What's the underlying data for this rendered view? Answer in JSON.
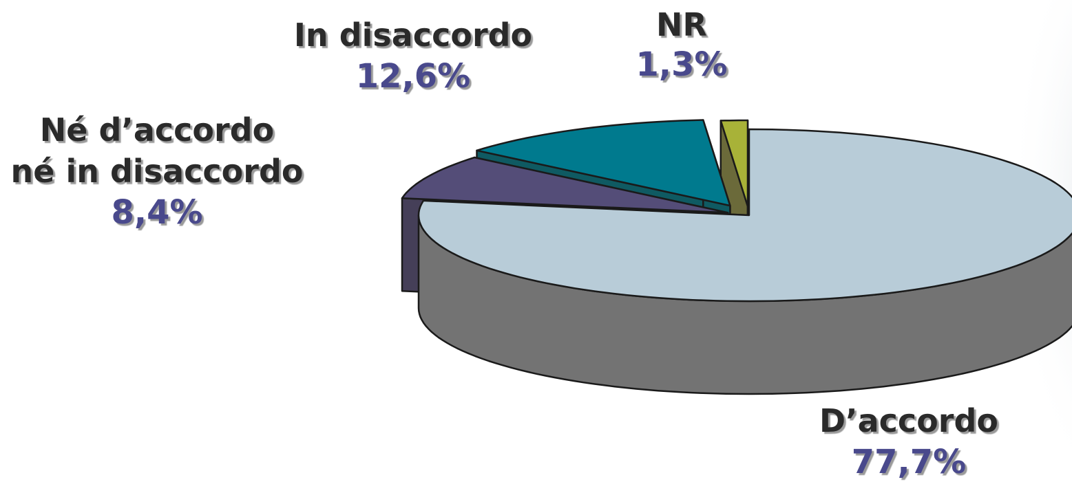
{
  "chart_data": {
    "type": "pie",
    "three_d": true,
    "exploded": true,
    "labels": [
      "D’accordo",
      "Né d’accordo né in disaccordo",
      "In disaccordo",
      "NR"
    ],
    "values": [
      77.7,
      8.4,
      12.6,
      1.3
    ],
    "value_labels": [
      "77,7%",
      "8,4%",
      "12,6%",
      "1,3%"
    ],
    "label_lines": [
      [
        "D’accordo"
      ],
      [
        "Né d’accordo",
        "né in disaccordo"
      ],
      [
        "In disaccordo"
      ],
      [
        "NR"
      ]
    ],
    "colors": [
      "#b8ccd8",
      "#544d78",
      "#007a8e",
      "#a8b238"
    ],
    "side_colors": [
      "#737373",
      "#453f58",
      "#0f5a62",
      "#6b6a3a"
    ],
    "value_label_color": "#4a4a8c",
    "legend": "none"
  }
}
